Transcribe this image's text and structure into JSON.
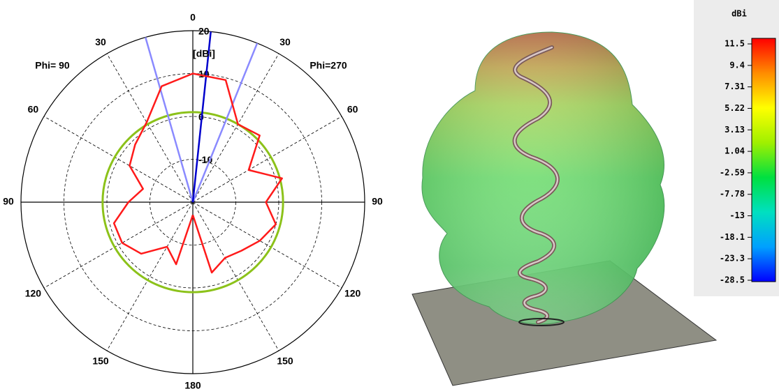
{
  "chart_data": [
    {
      "type": "polar",
      "left_label": "Phi= 90",
      "right_label": "Phi=270",
      "r_unit": "[dBi]",
      "rlim": [
        -20,
        20
      ],
      "rticks": [
        -10,
        0,
        10,
        20
      ],
      "angle_ticks": [
        0,
        30,
        60,
        90,
        120,
        150,
        180,
        {
          "value": -30,
          "label": "30"
        },
        {
          "value": -60,
          "label": "60"
        },
        {
          "value": -90,
          "label": "90"
        },
        {
          "value": -120,
          "label": "120"
        },
        {
          "value": -150,
          "label": "150"
        }
      ],
      "x": [
        -180,
        -165,
        -150,
        -135,
        -120,
        -105,
        -90,
        -75,
        -60,
        -45,
        -30,
        -15,
        0,
        15,
        30,
        45,
        60,
        75,
        90,
        105,
        120,
        135,
        150,
        165,
        180
      ],
      "series": [
        {
          "color": "#ff1a1a",
          "values": [
            -17,
            -5,
            -8,
            -3,
            -1,
            -1,
            -5,
            -8,
            -3,
            -1,
            1.5,
            8,
            10,
            9.5,
            1,
            2,
            -5,
            1.5,
            -3,
            0,
            -2,
            -4,
            -5,
            -3,
            -17
          ]
        }
      ],
      "reference_level": 1,
      "reference_color": "#8cc21a",
      "beam_direction": 6,
      "beam_direction_color": "#0000cc",
      "beam_edges": [
        -16,
        22
      ],
      "beam_edges_color": "#8a8aff"
    },
    {
      "type": "colorbar",
      "title": "dBi",
      "ticks": [
        11.5,
        9.4,
        7.31,
        5.22,
        3.13,
        1.04,
        -2.59,
        -7.78,
        -13,
        -18.1,
        -23.3,
        -28.5
      ],
      "colors": [
        "#ff0000",
        "#ff8c00",
        "#ffff00",
        "#a0f000",
        "#00e040",
        "#00e0c0",
        "#00a0ff",
        "#0000ff"
      ]
    }
  ]
}
